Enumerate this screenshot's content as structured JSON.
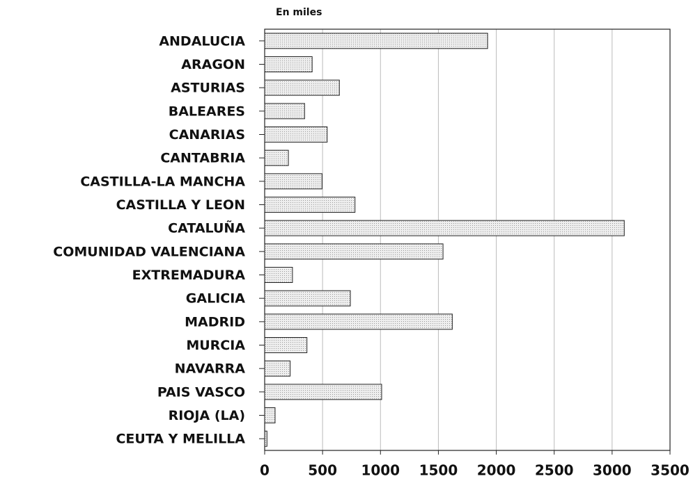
{
  "chart_data": {
    "type": "bar",
    "orientation": "horizontal",
    "subtitle": "En miles",
    "categories": [
      "ANDALUCIA",
      "ARAGON",
      "ASTURIAS",
      "BALEARES",
      "CANARIAS",
      "CANTABRIA",
      "CASTILLA-LA MANCHA",
      "CASTILLA Y LEON",
      "CATALUÑA",
      "COMUNIDAD VALENCIANA",
      "EXTREMADURA",
      "GALICIA",
      "MADRID",
      "MURCIA",
      "NAVARRA",
      "PAIS VASCO",
      "RIOJA (LA)",
      "CEUTA Y MELILLA"
    ],
    "values": [
      1925,
      410,
      645,
      345,
      540,
      205,
      495,
      780,
      3105,
      1540,
      240,
      740,
      1620,
      365,
      220,
      1010,
      90,
      20
    ],
    "color": "#dcdcdc",
    "xlim": [
      0,
      3500
    ],
    "xticks": [
      0,
      500,
      1000,
      1500,
      2000,
      2500,
      3000,
      3500
    ],
    "grid": true
  }
}
